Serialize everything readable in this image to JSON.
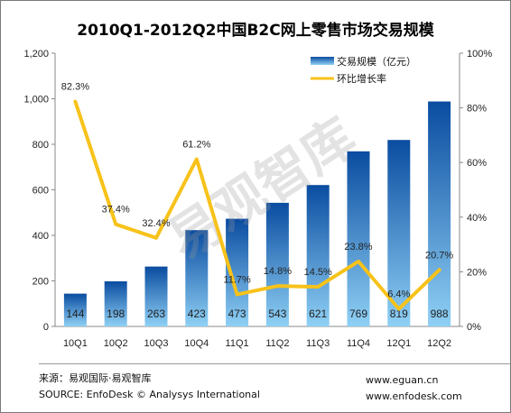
{
  "chart_data": {
    "type": "bar",
    "title": "2010Q1-2012Q2中国B2C网上零售市场交易规模",
    "categories": [
      "10Q1",
      "10Q2",
      "10Q3",
      "10Q4",
      "11Q1",
      "11Q2",
      "11Q3",
      "11Q4",
      "12Q1",
      "12Q2"
    ],
    "series": [
      {
        "name": "交易规模（亿元）",
        "type": "bar",
        "axis": "left",
        "values": [
          144,
          198,
          263,
          423,
          473,
          543,
          621,
          769,
          819,
          988
        ]
      },
      {
        "name": "环比增长率",
        "type": "line",
        "axis": "right",
        "values": [
          82.3,
          37.4,
          32.4,
          61.2,
          11.7,
          14.8,
          14.5,
          23.8,
          6.4,
          20.7
        ],
        "labels": [
          "82.3%",
          "37.4%",
          "32.4%",
          "61.2%",
          "11.7%",
          "14.8%",
          "14.5%",
          "23.8%",
          "6.4%",
          "20.7%"
        ]
      }
    ],
    "ylim": [
      0,
      1200
    ],
    "y2lim": [
      0,
      100
    ],
    "yticks": [
      "0",
      "200",
      "400",
      "600",
      "800",
      "1,000",
      "1,200"
    ],
    "y2ticks": [
      "0%",
      "20%",
      "40%",
      "60%",
      "80%",
      "100%"
    ],
    "legend_position": "top-right",
    "grid": false,
    "colors": {
      "bar_top": "#0a4ca0",
      "bar_bottom": "#8fd0f5",
      "line": "#f7c21a"
    }
  },
  "watermark": "易观智库",
  "footer": {
    "source_cn": "来源：易观国际·易观智库",
    "source_en": "SOURCE: EnfoDesk © Analysys International",
    "url1": "www.eguan.cn",
    "url2": "www.enfodesk.com"
  }
}
